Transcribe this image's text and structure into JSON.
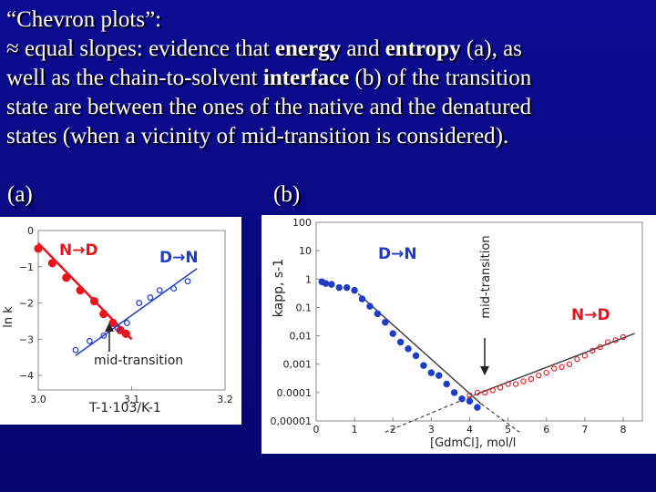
{
  "slide": {
    "title": "“Chevron plots”:",
    "approx_symbol": "≈",
    "line1_a": "equal slopes: evidence that",
    "kw_energy": "energy",
    "line1_b": "and",
    "kw_entropy": "entropy",
    "line1_c": "(a), as",
    "line2_a": "well as the chain-to-solvent",
    "kw_interface": "interface",
    "line2_b": "(b) of the transition",
    "line3": "state are between the ones of the native and the denatured",
    "line4": "states (when a vicinity of mid-transition is considered).",
    "label_a": "(a)",
    "label_b": "(b)"
  },
  "colors": {
    "background": "#0a0a8c",
    "red": "#e8141e",
    "blue": "#1e3cc8",
    "annotation": "#222222"
  },
  "chart_data": [
    {
      "type": "scatter",
      "xlabel": "T-1·103/K-1",
      "ylabel": "ln k",
      "xlim": [
        3.0,
        3.2
      ],
      "ylim": [
        -4.4,
        0
      ],
      "x_ticks": [
        "3.0",
        "3.1",
        "3.2"
      ],
      "y_ticks": [
        "0",
        "−1",
        "−2",
        "−3",
        "−4"
      ],
      "annotations": {
        "nd": "N→D",
        "dn": "D→N",
        "mid": "mid-transition"
      },
      "series": [
        {
          "name": "N→D",
          "color": "#e8141e",
          "filled": true,
          "x": [
            3.0,
            3.015,
            3.03,
            3.045,
            3.06,
            3.07,
            3.08,
            3.088,
            3.094
          ],
          "y": [
            -0.5,
            -0.9,
            -1.3,
            -1.65,
            -1.95,
            -2.3,
            -2.55,
            -2.75,
            -2.85
          ],
          "fit": [
            [
              3.0,
              -0.35
            ],
            [
              3.1,
              -3.0
            ]
          ]
        },
        {
          "name": "D→N",
          "color": "#1e3cc8",
          "filled": false,
          "x": [
            3.04,
            3.055,
            3.07,
            3.085,
            3.095,
            3.108,
            3.12,
            3.13,
            3.145,
            3.16
          ],
          "y": [
            -3.3,
            -3.05,
            -2.9,
            -2.7,
            -2.55,
            -2.0,
            -1.85,
            -1.65,
            -1.6,
            -1.4
          ],
          "fit": [
            [
              3.04,
              -3.45
            ],
            [
              3.17,
              -1.05
            ]
          ]
        }
      ]
    },
    {
      "type": "scatter",
      "xlabel": "[GdmCl], mol/l",
      "ylabel": "kapp, s-1",
      "xlim": [
        0,
        8.5
      ],
      "y_scale": "log",
      "ylim": [
        1e-05,
        100
      ],
      "x_ticks": [
        "0",
        "1",
        "2",
        "3",
        "4",
        "5",
        "6",
        "7",
        "8"
      ],
      "y_ticks": [
        "100",
        "10",
        "1",
        "0.1",
        "0,01",
        "0,001",
        "0.0001",
        "0,00001"
      ],
      "annotations": {
        "dn": "D→N",
        "nd": "N→D",
        "mid": "mid-transition"
      },
      "series": [
        {
          "name": "D→N",
          "color": "#1e3cc8",
          "filled": true,
          "x": [
            0.15,
            0.25,
            0.4,
            0.6,
            0.8,
            1.0,
            1.2,
            1.4,
            1.6,
            1.8,
            2.0,
            2.2,
            2.4,
            2.6,
            2.8,
            3.0,
            3.2,
            3.4,
            3.6,
            3.8,
            4.0,
            4.2
          ],
          "y": [
            0.8,
            0.7,
            0.65,
            0.5,
            0.5,
            0.4,
            0.2,
            0.11,
            0.06,
            0.03,
            0.012,
            0.006,
            0.0035,
            0.002,
            0.0009,
            0.0005,
            0.0004,
            0.0002,
            0.0001,
            6e-05,
            5e-05,
            3e-05
          ]
        },
        {
          "name": "N→D",
          "color": "#e8141e",
          "filled": false,
          "x": [
            4.0,
            4.2,
            4.4,
            4.6,
            4.8,
            5.0,
            5.2,
            5.4,
            5.6,
            5.8,
            6.0,
            6.2,
            6.4,
            6.6,
            6.8,
            7.0,
            7.2,
            7.4,
            7.6,
            7.8,
            8.0
          ],
          "y": [
            8e-05,
            0.0001,
            0.0001,
            0.00012,
            0.00015,
            0.0002,
            0.0002,
            0.00025,
            0.0003,
            0.0004,
            0.0005,
            0.0007,
            0.0008,
            0.001,
            0.0015,
            0.002,
            0.003,
            0.004,
            0.006,
            0.007,
            0.009
          ]
        }
      ]
    }
  ]
}
